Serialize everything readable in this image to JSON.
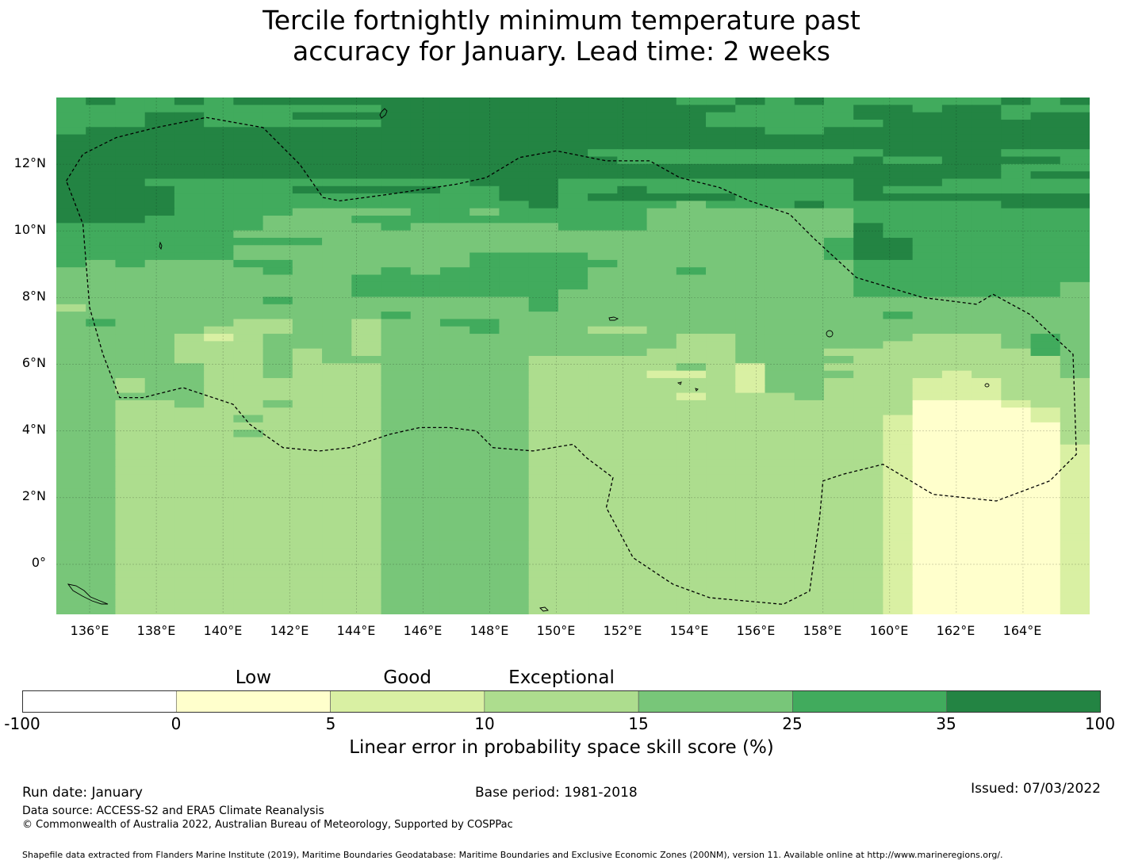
{
  "title": {
    "line1": "Tercile fortnightly minimum temperature past",
    "line2": "accuracy for January. Lead time: 2 weeks"
  },
  "map": {
    "lat_labels": [
      "12°N",
      "10°N",
      "8°N",
      "6°N",
      "4°N",
      "2°N",
      "0°"
    ],
    "lon_labels": [
      "136°E",
      "138°E",
      "140°E",
      "142°E",
      "144°E",
      "146°E",
      "148°E",
      "150°E",
      "152°E",
      "154°E",
      "156°E",
      "158°E",
      "160°E",
      "162°E",
      "164°E"
    ],
    "lon_range": [
      135,
      166
    ],
    "lat_range": [
      -1.5,
      14
    ],
    "grid_legend": "0 = 0–5 %, 1 = 5–10 %, 2 = 10–15 %, 3 = 15–25 %, 4 = 25–35 %, 5 = 35–100 %",
    "skill_grid": [
      "45445455555555555555544545444444545",
      "44444444444555555555555444455455444",
      "44455444555555555555554444455555455",
      "44455444444555555555554444445555555",
      "45555555555555555555555544555555555",
      "55555555555555555555555555555555555",
      "55555555555555555555555555555555555",
      "55555555555555555544444444445555444",
      "55555555555555555554444444454455554",
      "55555555555555555555555555555555444",
      "55555555555555555555555555555555455",
      "55544444444444555444444444455544444",
      "55554444555554455445444444454444444",
      "55554444444444455455555444455555555",
      "55554444444444445444434445444444555",
      "55554444333344344444333333344444444",
      "55544443334444444444333333344444444",
      "44444443333433333444333333354444444",
      "44444433333333333333333333354444444",
      "44444444433333333333333333455444444",
      "44444433333333333333333333455444444",
      "44444433333333444433333333455444444",
      "43433344333333444443333333344444444",
      "33333334333434444433343333344444444",
      "33333333334444444433333333344444444",
      "33333333334444444433333333344444443",
      "33333333334444444333333333344444443",
      "33333334333333334333333333333333333",
      "23333333333333334333333333333333333",
      "33333333333433333333333333334333333",
      "34333322332334433333333333333333333",
      "33333222332333433322333333333333333",
      "33332123332333333333322333333222343",
      "33332223332333333333322333332222343",
      "33332223232333333333222333222222243",
      "33332223233333332222222333322222223",
      "33333223222333332222232133222222223",
      "33333223222333332222112133322212223",
      "33233222222333332222222133222111222",
      "33233222222333332222222133222111222",
      "33333222222333332222212223222111222",
      "33223223222333332222222222222000122",
      "33222222222333332222222222222000012",
      "33222232222333332222222222221000012",
      "33222222222333332222222222221000002",
      "33222232222333332222222222221000002",
      "33222222222333332222222222221000002",
      "33222222222333332222222222221000001",
      "33222222222333332222222222221000001",
      "33222222222333332222222222221000001",
      "33222222222333332222222222221000001",
      "33222222222333332222222222221000001",
      "33222222222333332222222222221000001",
      "33222222222333332222222222221000001",
      "33222222222333332222222222221000001",
      "33222222222333332222222222221000001",
      "33222222222333332222222222221000001",
      "33222222222333332222222222221000001",
      "33222222222333332222222222221000001",
      "33222222222333332222222222221000001",
      "33222222222333332222222222221000001",
      "33222222222333332222222222221000001",
      "33222222222333332222222222221000001",
      "33222222222333332222222222221000001",
      "33222222222333332222222222221000001",
      "33222222222333332222222222221000001",
      "33222222222333332222222222221000001",
      "33222222222333332222222222221000001",
      "33222222222333332222222222221000001",
      "33222222222333332222222222221000001"
    ],
    "eez_boundary": [
      [
        135.3,
        11.5
      ],
      [
        135.8,
        12.3
      ],
      [
        136.8,
        12.8
      ],
      [
        138.0,
        13.1
      ],
      [
        139.5,
        13.4
      ],
      [
        141.2,
        13.1
      ],
      [
        142.3,
        12.0
      ],
      [
        143.0,
        11.0
      ],
      [
        143.5,
        10.9
      ],
      [
        145.0,
        11.1
      ],
      [
        147.0,
        11.4
      ],
      [
        147.9,
        11.6
      ],
      [
        148.9,
        12.2
      ],
      [
        150.0,
        12.4
      ],
      [
        151.5,
        12.1
      ],
      [
        152.8,
        12.1
      ],
      [
        153.7,
        11.6
      ],
      [
        154.9,
        11.3
      ],
      [
        155.8,
        10.9
      ],
      [
        157.0,
        10.5
      ],
      [
        157.7,
        9.8
      ],
      [
        159.0,
        8.6
      ],
      [
        161.0,
        8.0
      ],
      [
        162.6,
        7.8
      ],
      [
        163.1,
        8.1
      ],
      [
        164.2,
        7.5
      ],
      [
        165.5,
        6.3
      ],
      [
        165.6,
        3.3
      ],
      [
        164.8,
        2.5
      ],
      [
        163.2,
        1.9
      ],
      [
        161.3,
        2.1
      ],
      [
        159.8,
        3.0
      ],
      [
        158.6,
        2.7
      ],
      [
        158.0,
        2.5
      ],
      [
        157.9,
        1.4
      ],
      [
        157.6,
        -0.8
      ],
      [
        156.8,
        -1.2
      ],
      [
        154.6,
        -1.0
      ],
      [
        153.5,
        -0.6
      ],
      [
        152.3,
        0.2
      ],
      [
        151.5,
        1.7
      ],
      [
        151.7,
        2.6
      ],
      [
        150.9,
        3.2
      ],
      [
        150.5,
        3.6
      ],
      [
        149.3,
        3.4
      ],
      [
        148.1,
        3.5
      ],
      [
        147.6,
        4.0
      ],
      [
        146.8,
        4.1
      ],
      [
        145.9,
        4.1
      ],
      [
        145.0,
        3.9
      ],
      [
        143.8,
        3.5
      ],
      [
        142.9,
        3.4
      ],
      [
        141.8,
        3.5
      ],
      [
        140.8,
        4.2
      ],
      [
        140.3,
        4.8
      ],
      [
        139.4,
        5.1
      ],
      [
        138.8,
        5.3
      ],
      [
        137.6,
        5.0
      ],
      [
        136.9,
        5.0
      ],
      [
        136.4,
        6.3
      ],
      [
        136.0,
        7.7
      ],
      [
        135.8,
        10.2
      ],
      [
        135.3,
        11.5
      ]
    ]
  },
  "legend": {
    "category_labels": [
      {
        "text": "Low",
        "center": 2.5
      },
      {
        "text": "Good",
        "center": 7.5
      },
      {
        "text": "Exceptional",
        "center": 12.5
      }
    ],
    "bins": [
      {
        "from": "-100",
        "to": "0",
        "color": "#ffffff"
      },
      {
        "from": "0",
        "to": "5",
        "color": "#ffffcc"
      },
      {
        "from": "5",
        "to": "10",
        "color": "#d9f0a3"
      },
      {
        "from": "10",
        "to": "15",
        "color": "#addd8e"
      },
      {
        "from": "15",
        "to": "25",
        "color": "#78c679"
      },
      {
        "from": "25",
        "to": "35",
        "color": "#41ab5d"
      },
      {
        "from": "35",
        "to": "100",
        "color": "#238443"
      }
    ],
    "ticks": [
      "-100",
      "0",
      "5",
      "10",
      "15",
      "25",
      "35",
      "100"
    ],
    "title": "Linear error in probability space skill score (%)"
  },
  "footer": {
    "run_date": "Run date: January",
    "base_period": "Base period: 1981-2018",
    "issued": "Issued: 07/03/2022",
    "data_source": "Data source: ACCESS-S2 and ERA5 Climate Reanalysis",
    "copyright": "© Commonwealth of Australia 2022, Australian Bureau of Meteorology, Supported by COSPPac",
    "shapefile": "Shapefile data extracted from Flanders Marine Institute (2019), Maritime Boundaries Geodatabase: Maritime Boundaries and Exclusive Economic Zones (200NM), version 11. Available online at http://www.marineregions.org/."
  }
}
